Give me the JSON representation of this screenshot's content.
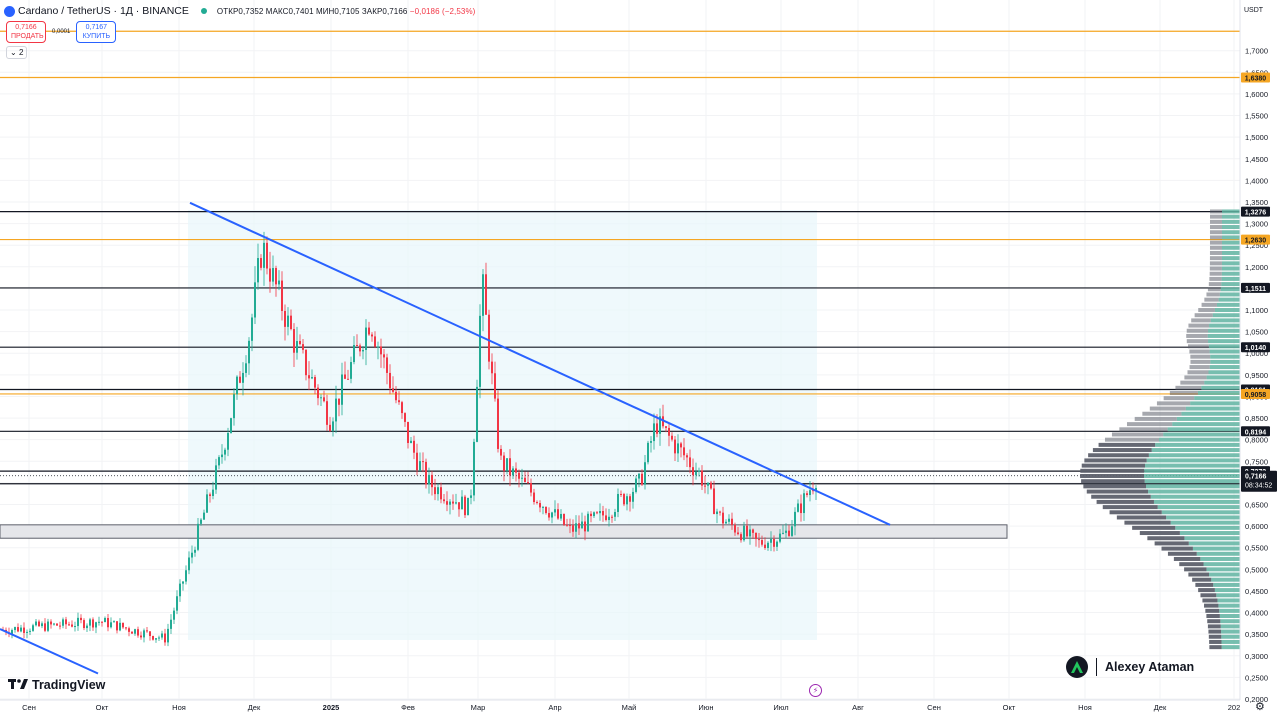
{
  "header": {
    "symbol": "Cardano / TetherUS · 1Д · BINANCE",
    "ohlc": "ОТКР0,7352 МАКС0,7401 МИН0,7105 ЗАКР0,7166",
    "change": "−0,0186 (−2,53%)"
  },
  "trade": {
    "sell_price": "0,7166",
    "sell_label": "ПРОДАТЬ",
    "spread": "0,0001",
    "buy_price": "0,7167",
    "buy_label": "КУПИТЬ"
  },
  "indicators_toggle": "2",
  "currency": "USDT",
  "branding": {
    "platform": "TradingView",
    "author": "Alexey Ataman"
  },
  "icons": [
    "cardano-logo-icon",
    "market-open-dot-icon",
    "chevron-down-icon",
    "tradingview-logo-icon",
    "author-logo-icon",
    "lightning-icon",
    "gear-icon"
  ],
  "colors": {
    "up": "#22ab94",
    "down": "#f23645",
    "trendline": "#2962ff",
    "orange_level": "#f5a623",
    "black_level": "#131722",
    "profile_teal": "#5fb3a1",
    "profile_grey": "#5d606b"
  },
  "chart_data": {
    "type": "candlestick",
    "price_axis": {
      "ticks": [
        "1,7000",
        "1,6500",
        "1,6000",
        "1,5500",
        "1,5000",
        "1,4500",
        "1,4000",
        "1,3500",
        "1,3000",
        "1,2500",
        "1,2000",
        "1,1500",
        "1,1000",
        "1,0500",
        "1,0000",
        "0,9500",
        "0,9000",
        "0,8500",
        "0,8000",
        "0,7500",
        "0,7000",
        "0,6500",
        "0,6000",
        "0,5500",
        "0,5000",
        "0,4500",
        "0,4000",
        "0,3500",
        "0,3000",
        "0,2500",
        "0,2000"
      ],
      "ylim": [
        0.2,
        1.72
      ]
    },
    "time_axis": {
      "ticks": [
        "Сен",
        "Окт",
        "Ноя",
        "Дек",
        "2025",
        "Фев",
        "Мар",
        "Апр",
        "Май",
        "Июн",
        "Июл",
        "Авг",
        "Сен",
        "Окт",
        "Ноя",
        "Дек",
        "202"
      ]
    },
    "horizontal_levels": [
      {
        "value": 1.745,
        "label": "",
        "color": "orange"
      },
      {
        "value": 1.638,
        "label": "1,6380",
        "color": "orange"
      },
      {
        "value": 1.3276,
        "label": "1,3276",
        "color": "black"
      },
      {
        "value": 1.263,
        "label": "1,2630",
        "color": "orange"
      },
      {
        "value": 1.1511,
        "label": "1,1511",
        "color": "black"
      },
      {
        "value": 1.014,
        "label": "1,0140",
        "color": "black"
      },
      {
        "value": 0.9161,
        "label": "0,9161",
        "color": "black"
      },
      {
        "value": 0.9058,
        "label": "0,9058",
        "color": "orange"
      },
      {
        "value": 0.8194,
        "label": "0,8194",
        "color": "black"
      },
      {
        "value": 0.7272,
        "label": "0,7272",
        "color": "black"
      },
      {
        "value": 0.698,
        "label": "0,6980",
        "color": "black"
      }
    ],
    "last_price": {
      "value": 0.7166,
      "label": "0,7166",
      "countdown": "08:34:52"
    },
    "support_zone": [
      0.572,
      0.603
    ],
    "trendlines": [
      {
        "from": [
          "Дек",
          1.348
        ],
        "to": [
          "Июл",
          0.603
        ]
      },
      {
        "from": [
          "Сен",
          0.362
        ],
        "to": [
          "Окт",
          0.259
        ]
      }
    ],
    "price_path": [
      [
        "Сен",
        0.36
      ],
      [
        "Окт",
        0.38
      ],
      [
        "Ноя",
        0.34
      ],
      [
        "Ноя",
        0.6
      ],
      [
        "Ноя",
        0.75
      ],
      [
        "Дек",
        1.05
      ],
      [
        "Дек",
        1.25
      ],
      [
        "Дек",
        1.02
      ],
      [
        "2025",
        0.85
      ],
      [
        "2025",
        1.08
      ],
      [
        "Фев",
        0.79
      ],
      [
        "Фев",
        0.7
      ],
      [
        "Мар",
        0.64
      ],
      [
        "Мар",
        1.17
      ],
      [
        "Мар",
        0.75
      ],
      [
        "Апр",
        0.59
      ],
      [
        "Апр",
        0.62
      ],
      [
        "Май",
        0.7
      ],
      [
        "Май",
        0.84
      ],
      [
        "Июн",
        0.72
      ],
      [
        "Июн",
        0.62
      ],
      [
        "Июл",
        0.56
      ],
      [
        "Июл",
        0.58
      ],
      [
        "Июл",
        0.7166
      ]
    ]
  }
}
